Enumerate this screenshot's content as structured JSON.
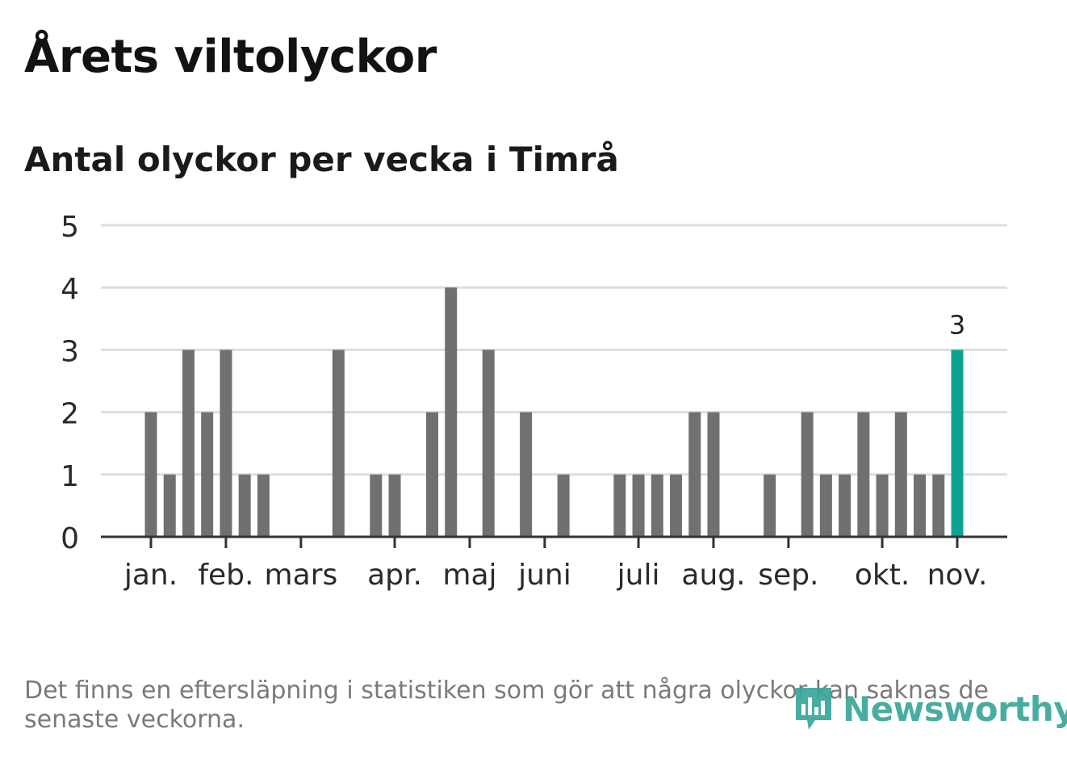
{
  "header": {
    "title": "Årets viltolyckor",
    "subtitle": "Antal olyckor per vecka i Timrå"
  },
  "chart_data": {
    "type": "bar",
    "title": "Årets viltolyckor",
    "subtitle": "Antal olyckor per vecka i Timrå",
    "xlabel": "",
    "ylabel": "",
    "ylim": [
      0,
      5
    ],
    "yticks": [
      "0",
      "1",
      "2",
      "3",
      "4",
      "5"
    ],
    "grid": true,
    "x_labels": [
      "jan.",
      "feb.",
      "mars",
      "apr.",
      "maj",
      "juni",
      "juli",
      "aug.",
      "sep.",
      "okt.",
      "nov."
    ],
    "x_label_weeks": [
      1,
      5,
      9,
      14,
      18,
      22,
      27,
      31,
      35,
      40,
      44
    ],
    "weeks": [
      1,
      2,
      3,
      4,
      5,
      6,
      7,
      8,
      9,
      10,
      11,
      12,
      13,
      14,
      15,
      16,
      17,
      18,
      19,
      20,
      21,
      22,
      23,
      24,
      25,
      26,
      27,
      28,
      29,
      30,
      31,
      32,
      33,
      34,
      35,
      36,
      37,
      38,
      39,
      40,
      41,
      42,
      43,
      44
    ],
    "values": [
      2,
      1,
      3,
      2,
      3,
      1,
      1,
      0,
      0,
      0,
      3,
      0,
      1,
      1,
      0,
      2,
      4,
      0,
      3,
      0,
      2,
      0,
      1,
      0,
      0,
      1,
      1,
      1,
      1,
      2,
      2,
      0,
      0,
      1,
      0,
      2,
      1,
      1,
      2,
      1,
      2,
      1,
      1,
      3
    ],
    "highlight_index": 43,
    "highlight_label": "3",
    "bar_color": "#707070",
    "highlight_color": "#0aa494",
    "grid_color": "#dddddd",
    "axis_color": "#333333"
  },
  "footer": {
    "note": "Det finns en eftersläpning i statistiken som gör att några olyckor kan saknas de senaste veckorna.",
    "logo_text": "Newsworthy",
    "logo_icon": "bar-chart-speech-bubble-icon",
    "logo_color": "#3aa69a"
  }
}
